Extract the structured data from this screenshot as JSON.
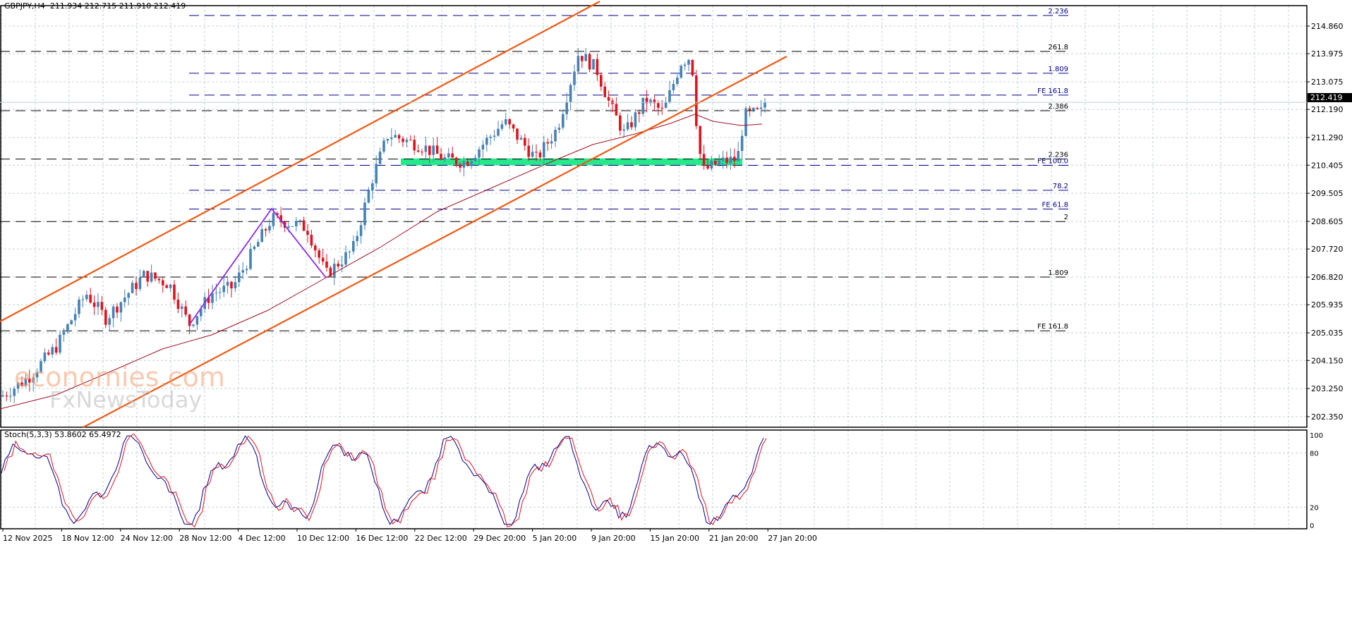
{
  "header": {
    "symbol": "GBPJPY,H4",
    "open": "211.934",
    "high": "212.715",
    "low": "211.910",
    "close": "212.419",
    "ohlc_text": "GBPJPY,H4  211.934 212.715 211.910 212.419"
  },
  "current_price": "212.419",
  "stochastic": {
    "label": "Stoch(5,3,3) 53.8602 65.4972",
    "params": "5,3,3",
    "main": "53.8602",
    "signal": "65.4972",
    "levels": [
      "100",
      "80",
      "20",
      "0"
    ]
  },
  "watermark": {
    "line1": "economies.com",
    "line2": "FxNewsToday"
  },
  "colors": {
    "bull": "#4682b4",
    "bear": "#e0141e",
    "channel": "#ee5a14",
    "ma": "#a01020",
    "wave": "#8a2be2",
    "fib_blue": "#00008b",
    "fib_black": "#000000",
    "zone": "#00e676",
    "grid": "#c0d0d8",
    "stoch_main": "#00008b",
    "stoch_signal": "#e0141e"
  },
  "chart_data": {
    "type": "candlestick",
    "title": "GBPJPY,H4",
    "x_tick_labels": [
      "12 Nov 2025",
      "18 Nov 12:00",
      "24 Nov 12:00",
      "28 Nov 12:00",
      "4 Dec 12:00",
      "10 Dec 12:00",
      "16 Dec 12:00",
      "22 Dec 12:00",
      "29 Dec 20:00",
      "5 Jan 20:00",
      "9 Jan 20:00",
      "15 Jan 20:00",
      "21 Jan 20:00",
      "27 Jan 20:00"
    ],
    "y_tick_labels": [
      "214.860",
      "213.975",
      "213.075",
      "212.190",
      "211.290",
      "210.405",
      "209.505",
      "208.605",
      "207.720",
      "206.820",
      "205.935",
      "205.035",
      "204.150",
      "203.250",
      "202.350"
    ],
    "ylim": [
      202.0,
      215.4
    ],
    "last_price": 212.419,
    "fib_levels": [
      {
        "label": "2.236",
        "price": 215.2,
        "color": "blue"
      },
      {
        "label": "261.8",
        "price": 214.05,
        "color": "black"
      },
      {
        "label": "1.809",
        "price": 213.35,
        "color": "blue"
      },
      {
        "label": "FE 161.8",
        "price": 212.65,
        "color": "blue"
      },
      {
        "label": "2.386",
        "price": 212.15,
        "color": "black"
      },
      {
        "label": "2.236",
        "price": 210.6,
        "color": "black"
      },
      {
        "label": "FE 100.0",
        "price": 210.4,
        "color": "blue"
      },
      {
        "label": "78.2",
        "price": 209.6,
        "color": "blue"
      },
      {
        "label": "FE 61.8",
        "price": 209.0,
        "color": "blue"
      },
      {
        "label": "2",
        "price": 208.6,
        "color": "black"
      },
      {
        "label": "1.809",
        "price": 206.82,
        "color": "black"
      },
      {
        "label": "FE 161.8",
        "price": 205.1,
        "color": "black"
      }
    ],
    "support_zone": {
      "from": 210.4,
      "to": 210.62
    },
    "stoch_levels": [
      100,
      80,
      20,
      0
    ],
    "stoch_last": {
      "main": 53.8602,
      "signal": 65.4972
    }
  }
}
